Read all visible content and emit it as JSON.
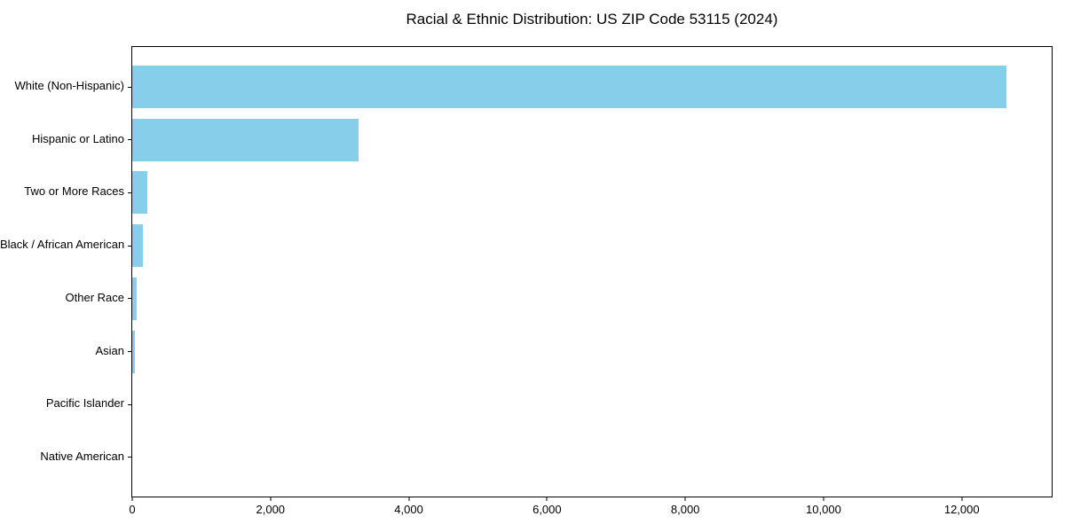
{
  "title": "Racial & Ethnic Distribution: US ZIP Code 53115 (2024)",
  "chart_data": {
    "type": "bar",
    "orientation": "horizontal",
    "title": "Racial & Ethnic Distribution: US ZIP Code 53115 (2024)",
    "xlabel": "",
    "ylabel": "",
    "categories": [
      "White (Non-Hispanic)",
      "Hispanic or Latino",
      "Two or More Races",
      "Black / African American",
      "Other Race",
      "Asian",
      "Pacific Islander",
      "Native American"
    ],
    "values": [
      12650,
      3270,
      220,
      150,
      70,
      35,
      0,
      0
    ],
    "xlim": [
      0,
      13300
    ],
    "xticks": [
      0,
      2000,
      4000,
      6000,
      8000,
      10000,
      12000
    ],
    "xtick_labels": [
      "0",
      "2,000",
      "4,000",
      "6,000",
      "8,000",
      "10,000",
      "12,000"
    ],
    "bar_color": "#87CEEB",
    "background_color": "#ffffff",
    "spine_color": "#000000",
    "grid": false,
    "legend": false
  }
}
